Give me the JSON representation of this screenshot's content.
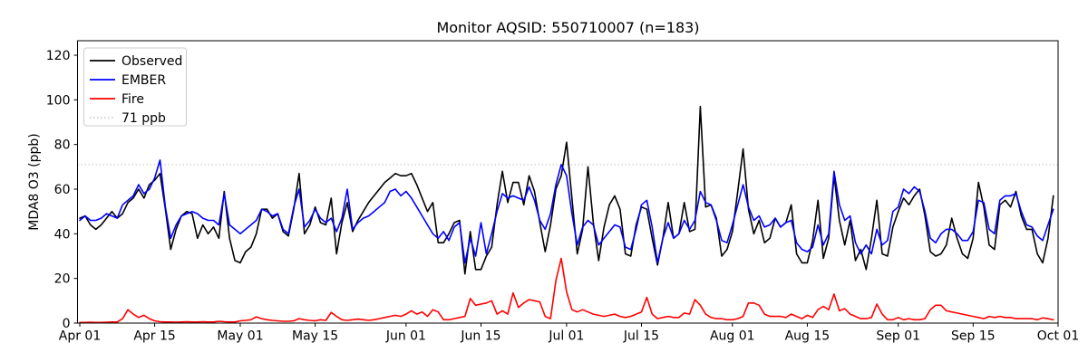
{
  "chart_data": {
    "type": "line",
    "title": "Monitor AQSID: 550710007 (n=183)",
    "xlabel": "",
    "ylabel": "MDA8 O3 (ppb)",
    "n_points": 183,
    "grid": false,
    "legend_position": "upper left",
    "ylim": [
      0,
      126.5
    ],
    "yticks": [
      0,
      20,
      40,
      60,
      80,
      100,
      120
    ],
    "xticks": [
      {
        "day": 0,
        "label": "Apr 01"
      },
      {
        "day": 14,
        "label": "Apr 15"
      },
      {
        "day": 30,
        "label": "May 01"
      },
      {
        "day": 44,
        "label": "May 15"
      },
      {
        "day": 61,
        "label": "Jun 01"
      },
      {
        "day": 75,
        "label": "Jun 15"
      },
      {
        "day": 91,
        "label": "Jul 01"
      },
      {
        "day": 105,
        "label": "Jul 15"
      },
      {
        "day": 122,
        "label": "Aug 01"
      },
      {
        "day": 136,
        "label": "Aug 15"
      },
      {
        "day": 153,
        "label": "Sep 01"
      },
      {
        "day": 167,
        "label": "Sep 15"
      },
      {
        "day": 183,
        "label": "Oct 01"
      }
    ],
    "threshold": {
      "value": 71,
      "label": "71 ppb",
      "color": "#cccccc",
      "style": "dotted"
    },
    "series": [
      {
        "name": "Observed",
        "color": "#000000",
        "values": [
          47,
          48,
          44,
          42,
          44,
          47,
          50,
          47,
          49,
          54,
          56,
          60,
          56,
          62,
          64,
          67,
          51,
          33,
          42,
          48,
          50,
          49,
          38,
          44,
          40,
          43,
          38,
          59,
          38,
          28,
          27,
          32,
          34,
          40,
          51,
          51,
          47,
          49,
          41,
          39,
          51,
          67,
          40,
          44,
          52,
          45,
          44,
          56,
          31,
          45,
          54,
          41,
          46,
          50,
          54,
          57,
          60,
          63,
          65,
          67,
          66,
          66,
          67,
          62,
          56,
          50,
          54,
          36,
          36,
          40,
          45,
          46,
          22,
          41,
          24,
          24,
          30,
          34,
          53,
          68,
          54,
          63,
          63,
          53,
          66,
          59,
          45,
          32,
          44,
          60,
          66,
          81,
          56,
          31,
          42,
          70,
          45,
          28,
          43,
          53,
          57,
          51,
          31,
          30,
          44,
          52,
          51,
          38,
          26,
          38,
          54,
          38,
          40,
          54,
          41,
          42,
          97,
          52,
          53,
          47,
          30,
          33,
          41,
          59,
          78,
          51,
          40,
          46,
          36,
          38,
          47,
          43,
          45,
          53,
          31,
          27,
          27,
          37,
          55,
          29,
          38,
          66,
          46,
          35,
          46,
          28,
          33,
          24,
          38,
          55,
          31,
          30,
          43,
          50,
          56,
          53,
          57,
          60,
          48,
          32,
          30,
          31,
          35,
          47,
          38,
          31,
          29,
          38,
          63,
          52,
          35,
          33,
          53,
          55,
          52,
          59,
          48,
          42,
          42,
          31,
          27,
          38,
          57
        ]
      },
      {
        "name": "EMBER",
        "color": "#0000ff",
        "values": [
          46,
          48,
          46,
          46,
          47,
          49,
          48,
          47,
          53,
          55,
          57,
          62,
          58,
          60,
          65,
          73,
          52,
          38,
          44,
          48,
          49,
          50,
          49,
          47,
          46,
          46,
          44,
          58,
          44,
          42,
          40,
          42,
          44,
          46,
          51,
          50,
          48,
          49,
          42,
          40,
          52,
          60,
          43,
          46,
          51,
          47,
          45,
          47,
          41,
          47,
          60,
          42,
          45,
          47,
          48,
          50,
          52,
          54,
          59,
          60,
          57,
          59,
          56,
          52,
          48,
          44,
          40,
          38,
          41,
          37,
          43,
          45,
          27,
          38,
          30,
          45,
          31,
          40,
          50,
          58,
          56,
          57,
          56,
          55,
          61,
          55,
          46,
          42,
          49,
          62,
          71,
          66,
          49,
          35,
          43,
          46,
          44,
          35,
          38,
          41,
          44,
          43,
          34,
          33,
          42,
          53,
          55,
          43,
          27,
          38,
          45,
          38,
          40,
          46,
          42,
          46,
          59,
          54,
          53,
          46,
          37,
          36,
          44,
          53,
          62,
          52,
          46,
          48,
          43,
          44,
          47,
          43,
          45,
          46,
          36,
          33,
          32,
          34,
          44,
          35,
          40,
          68,
          53,
          46,
          48,
          36,
          31,
          35,
          31,
          42,
          35,
          37,
          50,
          52,
          60,
          58,
          61,
          59,
          50,
          38,
          36,
          40,
          42,
          42,
          40,
          37,
          37,
          41,
          55,
          54,
          42,
          40,
          55,
          57,
          57,
          58,
          50,
          44,
          43,
          39,
          37,
          44,
          51
        ]
      },
      {
        "name": "Fire",
        "color": "#ff0000",
        "values": [
          0.3,
          0.3,
          0.4,
          0.3,
          0.3,
          0.4,
          0.5,
          0.5,
          2,
          6,
          4,
          2.5,
          3.5,
          2,
          1,
          0.6,
          0.5,
          0.5,
          0.4,
          0.5,
          0.6,
          0.5,
          0.5,
          0.6,
          0.5,
          0.5,
          0.8,
          0.6,
          0.5,
          0.5,
          1,
          1.2,
          1.5,
          2.8,
          2,
          1.5,
          1.2,
          1,
          0.8,
          0.8,
          1,
          2,
          1.5,
          1.2,
          1,
          1.5,
          1.2,
          4.8,
          3,
          1.5,
          1.2,
          1.5,
          1.8,
          1.5,
          1.2,
          1.5,
          2,
          2.5,
          3,
          3.5,
          3,
          4,
          5.5,
          4,
          5,
          3,
          6,
          5,
          1.5,
          1.5,
          2,
          2.5,
          3,
          11,
          8,
          8.5,
          9,
          10,
          4,
          5.5,
          4,
          13.5,
          7,
          9,
          10.5,
          10,
          9.5,
          3,
          2,
          19,
          29,
          14,
          6,
          5,
          6,
          5,
          4,
          3.5,
          3,
          3.5,
          4,
          3,
          2.5,
          3,
          4,
          5,
          11.5,
          4,
          2,
          2.5,
          3,
          2.5,
          2.5,
          4.5,
          4,
          10.5,
          8,
          4,
          2.5,
          2,
          2,
          1.5,
          1.5,
          2,
          3,
          9,
          9,
          8,
          4,
          3,
          3,
          3,
          2.5,
          4,
          3,
          2,
          3.5,
          2.5,
          6,
          7.5,
          6,
          13,
          5.5,
          6.5,
          4,
          3,
          2,
          2,
          2.5,
          8.5,
          4,
          1.5,
          1.5,
          2.5,
          1.5,
          2,
          1.5,
          1.5,
          2,
          6,
          8,
          8,
          5.5,
          5,
          4.5,
          4,
          3.5,
          3,
          2.5,
          2,
          3,
          2.5,
          3,
          2.5,
          2.5,
          2,
          2,
          2,
          2,
          1.5,
          2.3,
          2,
          1.5
        ]
      }
    ],
    "legend_entries": [
      "Observed",
      "EMBER",
      "Fire",
      "71 ppb"
    ]
  }
}
